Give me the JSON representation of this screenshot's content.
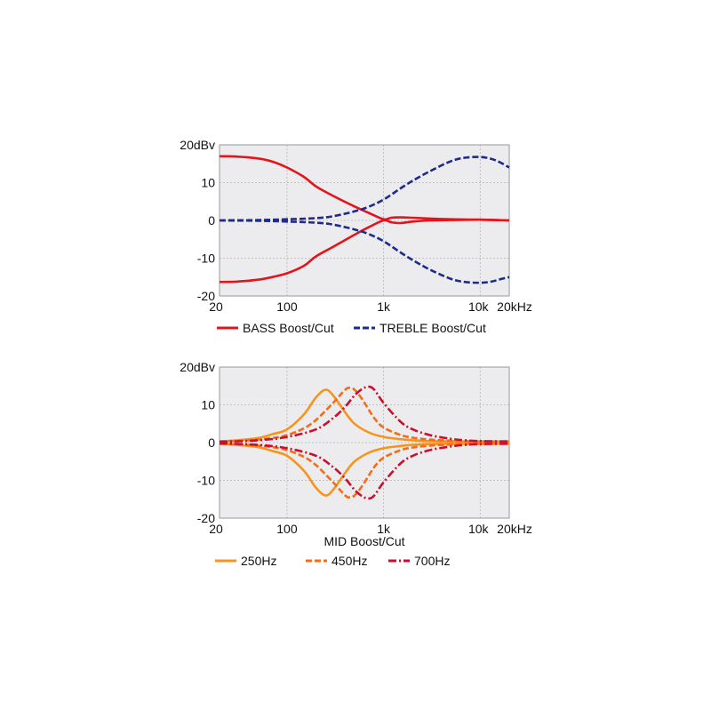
{
  "chart_data": [
    {
      "type": "line",
      "title": "",
      "xlabel": "",
      "ylabel": "",
      "xscale": "log",
      "xlim": [
        20,
        20000
      ],
      "ylim": [
        -20,
        20
      ],
      "grid": true,
      "x_ticks": [
        {
          "value": 20,
          "label": "20"
        },
        {
          "value": 100,
          "label": "100"
        },
        {
          "value": 1000,
          "label": "1k"
        },
        {
          "value": 10000,
          "label": "10k"
        },
        {
          "value": 20000,
          "label": "20kHz"
        }
      ],
      "y_ticks": [
        {
          "value": 20,
          "label": "20dBv"
        },
        {
          "value": 10,
          "label": "10"
        },
        {
          "value": 0,
          "label": "0"
        },
        {
          "value": -10,
          "label": "-10"
        },
        {
          "value": -20,
          "label": "-20"
        }
      ],
      "legend": [
        {
          "label": "BASS Boost/Cut",
          "color": "#e3141c",
          "dash": "solid"
        },
        {
          "label": "TREBLE Boost/Cut",
          "color": "#1e2b8e",
          "dash": "dashed"
        }
      ],
      "series": [
        {
          "legend_index": 0,
          "color": "#e3141c",
          "dash": "solid",
          "x": [
            20,
            30,
            50,
            70,
            100,
            150,
            200,
            300,
            500,
            700,
            1000,
            1200,
            1500,
            2000,
            3000,
            5000,
            10000,
            20000
          ],
          "y": [
            17,
            16.9,
            16.4,
            15.6,
            14,
            11.5,
            9,
            6.5,
            3.7,
            2,
            0.3,
            0.7,
            0.8,
            0.7,
            0.5,
            0.3,
            0.2,
            0
          ]
        },
        {
          "legend_index": 0,
          "color": "#e3141c",
          "dash": "solid",
          "x": [
            20,
            30,
            50,
            70,
            100,
            150,
            200,
            300,
            500,
            700,
            1000,
            1200,
            1500,
            2000,
            3000,
            5000,
            10000,
            20000
          ],
          "y": [
            -16.3,
            -16.2,
            -15.7,
            -15,
            -14,
            -12,
            -9.5,
            -7,
            -3.8,
            -1.8,
            0,
            -0.5,
            -0.7,
            -0.3,
            0,
            0.1,
            0.2,
            0
          ]
        },
        {
          "legend_index": 1,
          "color": "#1e2b8e",
          "dash": "dashed",
          "x": [
            20,
            50,
            100,
            200,
            300,
            500,
            700,
            1000,
            1500,
            2000,
            3000,
            5000,
            7000,
            10000,
            13000,
            16000,
            20000
          ],
          "y": [
            0,
            0.1,
            0.3,
            0.6,
            1.1,
            2.4,
            3.6,
            5.5,
            8.5,
            10.5,
            13,
            15.7,
            16.6,
            16.8,
            16.3,
            15.4,
            14
          ]
        },
        {
          "legend_index": 1,
          "color": "#1e2b8e",
          "dash": "dashed",
          "x": [
            20,
            50,
            100,
            200,
            300,
            500,
            700,
            1000,
            1500,
            2000,
            3000,
            5000,
            7000,
            10000,
            13000,
            16000,
            20000
          ],
          "y": [
            0,
            -0.1,
            -0.3,
            -0.6,
            -1.1,
            -2.4,
            -3.6,
            -5.5,
            -8.5,
            -10.5,
            -13,
            -15.5,
            -16.3,
            -16.5,
            -16.2,
            -15.6,
            -15
          ]
        }
      ]
    },
    {
      "type": "line",
      "title": "",
      "xlabel": "MID Boost/Cut",
      "ylabel": "",
      "xscale": "log",
      "xlim": [
        20,
        20000
      ],
      "ylim": [
        -20,
        20
      ],
      "grid": true,
      "x_ticks": [
        {
          "value": 20,
          "label": "20"
        },
        {
          "value": 100,
          "label": "100"
        },
        {
          "value": 1000,
          "label": "1k"
        },
        {
          "value": 10000,
          "label": "10k"
        },
        {
          "value": 20000,
          "label": "20kHz"
        }
      ],
      "y_ticks": [
        {
          "value": 20,
          "label": "20dBv"
        },
        {
          "value": 10,
          "label": "10"
        },
        {
          "value": 0,
          "label": "0"
        },
        {
          "value": -10,
          "label": "-10"
        },
        {
          "value": -20,
          "label": "-20"
        }
      ],
      "legend": [
        {
          "label": "250Hz",
          "color": "#f7941d",
          "dash": "solid"
        },
        {
          "label": "450Hz",
          "color": "#f26c1a",
          "dash": "dashed"
        },
        {
          "label": "700Hz",
          "color": "#c8102e",
          "dash": "dashdot"
        }
      ],
      "series": [
        {
          "legend_index": 0,
          "color": "#f7941d",
          "dash": "solid",
          "x": [
            20,
            30,
            50,
            70,
            100,
            150,
            200,
            250,
            300,
            400,
            500,
            700,
            1000,
            1500,
            2000,
            3000,
            5000,
            10000,
            20000
          ],
          "y": [
            0.3,
            0.6,
            1.2,
            2.2,
            3.5,
            7.5,
            12,
            14,
            12.5,
            8,
            5,
            2.7,
            1.5,
            0.9,
            0.6,
            0.4,
            0.3,
            0.3,
            0.3
          ]
        },
        {
          "legend_index": 0,
          "color": "#f7941d",
          "dash": "solid",
          "x": [
            20,
            30,
            50,
            70,
            100,
            150,
            200,
            250,
            300,
            400,
            500,
            700,
            1000,
            1500,
            2000,
            3000,
            5000,
            10000,
            20000
          ],
          "y": [
            -0.3,
            -0.6,
            -1.2,
            -2.2,
            -3.5,
            -7.5,
            -12,
            -14,
            -12.5,
            -8,
            -5,
            -2.7,
            -1.5,
            -0.9,
            -0.6,
            -0.4,
            -0.3,
            -0.3,
            -0.3
          ]
        },
        {
          "legend_index": 1,
          "color": "#f26c1a",
          "dash": "dashed",
          "x": [
            20,
            40,
            70,
            100,
            150,
            200,
            300,
            400,
            450,
            500,
            600,
            800,
            1000,
            1500,
            2000,
            3000,
            5000,
            10000,
            20000
          ],
          "y": [
            0.3,
            0.6,
            1.2,
            2,
            3.8,
            6,
            10.5,
            14,
            14.5,
            14,
            11.5,
            6.5,
            4,
            2,
            1.3,
            0.8,
            0.5,
            0.3,
            0.3
          ]
        },
        {
          "legend_index": 1,
          "color": "#f26c1a",
          "dash": "dashed",
          "x": [
            20,
            40,
            70,
            100,
            150,
            200,
            300,
            400,
            450,
            500,
            600,
            800,
            1000,
            1500,
            2000,
            3000,
            5000,
            10000,
            20000
          ],
          "y": [
            -0.3,
            -0.6,
            -1.2,
            -2,
            -3.8,
            -6,
            -10.5,
            -14,
            -14.5,
            -14,
            -11.5,
            -6.5,
            -4,
            -2,
            -1.3,
            -0.8,
            -0.5,
            -0.3,
            -0.3
          ]
        },
        {
          "legend_index": 2,
          "color": "#c8102e",
          "dash": "dashdot",
          "x": [
            20,
            50,
            100,
            200,
            300,
            400,
            500,
            600,
            700,
            800,
            1000,
            1500,
            2000,
            3000,
            5000,
            7000,
            10000,
            20000
          ],
          "y": [
            0.2,
            0.6,
            1.5,
            3.5,
            6.5,
            9.5,
            12.5,
            14.2,
            14.8,
            14,
            10.5,
            5.5,
            3.5,
            2,
            1,
            0.6,
            0.4,
            0.3
          ]
        },
        {
          "legend_index": 2,
          "color": "#c8102e",
          "dash": "dashdot",
          "x": [
            20,
            50,
            100,
            200,
            300,
            400,
            500,
            600,
            700,
            800,
            1000,
            1500,
            2000,
            3000,
            5000,
            7000,
            10000,
            20000
          ],
          "y": [
            -0.2,
            -0.6,
            -1.5,
            -3.5,
            -6.5,
            -9.5,
            -12.5,
            -14.2,
            -14.8,
            -14,
            -10.5,
            -5.5,
            -3.5,
            -2,
            -1,
            -0.6,
            -0.4,
            -0.3
          ]
        }
      ]
    }
  ]
}
